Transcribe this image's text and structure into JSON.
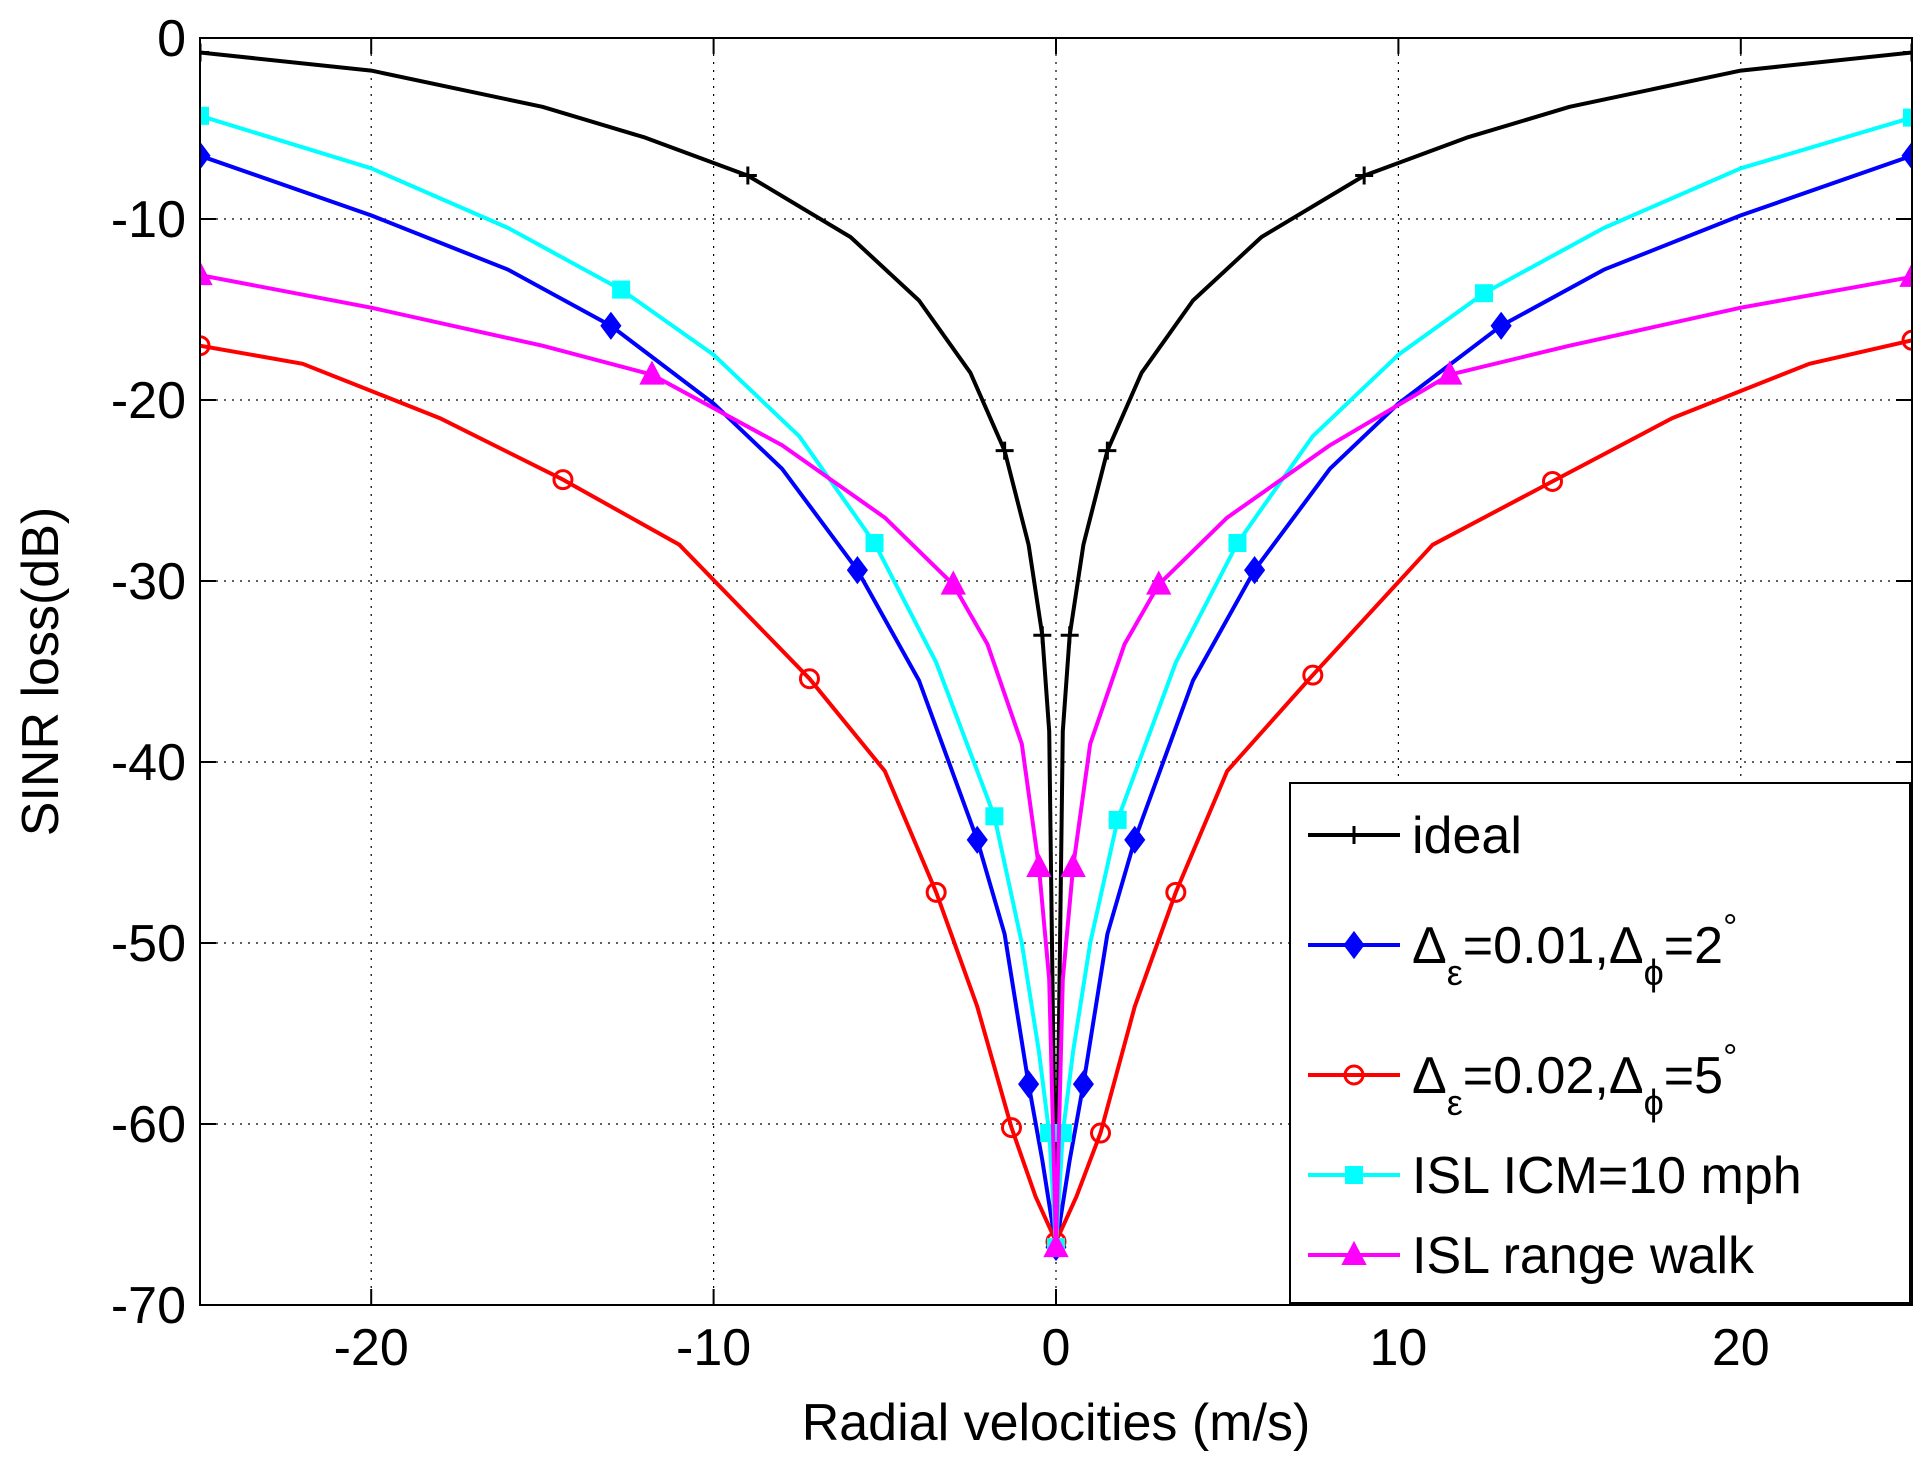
{
  "chart_data": {
    "type": "line",
    "title": "",
    "xlabel": "Radial velocities (m/s)",
    "ylabel": "SINR loss(dB)",
    "xlim": [
      -25,
      25
    ],
    "ylim": [
      -70,
      0
    ],
    "xticks": [
      -20,
      -10,
      0,
      10,
      20
    ],
    "yticks": [
      0,
      -10,
      -20,
      -30,
      -40,
      -50,
      -60,
      -70
    ],
    "xtick_labels": [
      "-20",
      "-10",
      "0",
      "10",
      "20"
    ],
    "ytick_labels": [
      "0",
      "-10",
      "-20",
      "-30",
      "-40",
      "-50",
      "-60",
      "-70"
    ],
    "grid": true,
    "legend_position": "bottom-right",
    "series": [
      {
        "name": "ideal",
        "legend": {
          "base": "ideal"
        },
        "color": "#000000",
        "marker": "plus",
        "points": [
          [
            -25,
            -0.8
          ],
          [
            -20,
            -1.8
          ],
          [
            -15,
            -3.8
          ],
          [
            -12,
            -5.5
          ],
          [
            -9,
            -7.6
          ],
          [
            -6,
            -11.0
          ],
          [
            -4,
            -14.5
          ],
          [
            -2.5,
            -18.5
          ],
          [
            -1.5,
            -22.8
          ],
          [
            -0.8,
            -28
          ],
          [
            -0.4,
            -33
          ],
          [
            -0.2,
            -38.3
          ],
          [
            0,
            -67
          ],
          [
            0.2,
            -38.3
          ],
          [
            0.4,
            -33
          ],
          [
            0.8,
            -28
          ],
          [
            1.5,
            -22.8
          ],
          [
            2.5,
            -18.5
          ],
          [
            4,
            -14.5
          ],
          [
            6,
            -11.0
          ],
          [
            9,
            -7.6
          ],
          [
            12,
            -5.5
          ],
          [
            15,
            -3.8
          ],
          [
            20,
            -1.8
          ],
          [
            25,
            -0.8
          ]
        ],
        "marker_x": [
          -25,
          -9,
          -1.5,
          -0.4,
          0.4,
          1.5,
          9,
          25
        ]
      },
      {
        "name": "Δε=0.01,Δϕ=2°",
        "legend": {
          "base": "Δ",
          "sub1": "ε",
          "mid": "=0.01,Δ",
          "sub2": "ϕ",
          "tail": "=2",
          "sup": "°"
        },
        "color": "#0000ff",
        "marker": "diamond",
        "points": [
          [
            -25,
            -6.5
          ],
          [
            -20,
            -9.8
          ],
          [
            -16,
            -12.8
          ],
          [
            -13,
            -15.9
          ],
          [
            -10,
            -20.2
          ],
          [
            -8,
            -23.8
          ],
          [
            -5.8,
            -29.4
          ],
          [
            -4,
            -35.5
          ],
          [
            -2.3,
            -44.3
          ],
          [
            -1.5,
            -49.5
          ],
          [
            -0.8,
            -57.8
          ],
          [
            -0.4,
            -62
          ],
          [
            0,
            -66.8
          ],
          [
            0.4,
            -62
          ],
          [
            0.8,
            -57.8
          ],
          [
            1.5,
            -49.5
          ],
          [
            2.3,
            -44.3
          ],
          [
            4,
            -35.5
          ],
          [
            5.8,
            -29.4
          ],
          [
            8,
            -23.8
          ],
          [
            10,
            -20.2
          ],
          [
            13,
            -15.9
          ],
          [
            16,
            -12.8
          ],
          [
            20,
            -9.8
          ],
          [
            25,
            -6.5
          ]
        ],
        "marker_x": [
          -25,
          -13,
          -5.8,
          -2.3,
          -0.8,
          0,
          0.8,
          2.3,
          5.8,
          13,
          25
        ]
      },
      {
        "name": "Δε=0.02,Δϕ=5°",
        "legend": {
          "base": "Δ",
          "sub1": "ε",
          "mid": "=0.02,Δ",
          "sub2": "ϕ",
          "tail": "=5",
          "sup": "°"
        },
        "color": "#ff0000",
        "marker": "circle",
        "points": [
          [
            -25,
            -17.0
          ],
          [
            -22,
            -18.0
          ],
          [
            -18,
            -21.0
          ],
          [
            -14.4,
            -24.4
          ],
          [
            -11,
            -28.0
          ],
          [
            -7.2,
            -35.4
          ],
          [
            -5,
            -40.5
          ],
          [
            -3.5,
            -47.2
          ],
          [
            -2.3,
            -53.5
          ],
          [
            -1.3,
            -60.2
          ],
          [
            -0.6,
            -64
          ],
          [
            0,
            -66.5
          ],
          [
            0.6,
            -64
          ],
          [
            1.3,
            -60.5
          ],
          [
            2.3,
            -53.5
          ],
          [
            3.5,
            -47.2
          ],
          [
            5,
            -40.5
          ],
          [
            7.5,
            -35.2
          ],
          [
            11,
            -28.0
          ],
          [
            14.5,
            -24.5
          ],
          [
            18,
            -21.0
          ],
          [
            22,
            -18.0
          ],
          [
            25,
            -16.7
          ]
        ],
        "marker_x": [
          -25,
          -14.4,
          -7.2,
          -3.5,
          -1.3,
          0,
          1.3,
          3.5,
          7.5,
          14.5,
          25
        ]
      },
      {
        "name": "ISL ICM=10 mph",
        "legend": {
          "base": "ISL ICM=10 mph"
        },
        "color": "#00ffff",
        "marker": "square",
        "points": [
          [
            -25,
            -4.3
          ],
          [
            -20,
            -7.2
          ],
          [
            -16,
            -10.5
          ],
          [
            -12.7,
            -13.9
          ],
          [
            -10,
            -17.5
          ],
          [
            -7.5,
            -22.0
          ],
          [
            -5.3,
            -27.9
          ],
          [
            -3.5,
            -34.5
          ],
          [
            -1.8,
            -43.0
          ],
          [
            -1.0,
            -50.0
          ],
          [
            -0.5,
            -56.0
          ],
          [
            -0.2,
            -60.5
          ],
          [
            0,
            -66.8
          ],
          [
            0.2,
            -60.5
          ],
          [
            0.5,
            -56.0
          ],
          [
            1.0,
            -50.0
          ],
          [
            1.8,
            -43.2
          ],
          [
            3.5,
            -34.5
          ],
          [
            5.3,
            -27.9
          ],
          [
            7.5,
            -22.0
          ],
          [
            10,
            -17.5
          ],
          [
            12.5,
            -14.1
          ],
          [
            16,
            -10.5
          ],
          [
            20,
            -7.2
          ],
          [
            25,
            -4.4
          ]
        ],
        "marker_x": [
          -25,
          -12.7,
          -5.3,
          -1.8,
          -0.2,
          0,
          0.2,
          1.8,
          5.3,
          12.5,
          25
        ]
      },
      {
        "name": "ISL range walk",
        "legend": {
          "base": "ISL range walk"
        },
        "color": "#ff00ff",
        "marker": "triangle",
        "points": [
          [
            -25,
            -13.1
          ],
          [
            -20,
            -14.9
          ],
          [
            -15,
            -17.0
          ],
          [
            -11.8,
            -18.6
          ],
          [
            -8,
            -22.5
          ],
          [
            -5,
            -26.5
          ],
          [
            -3,
            -30.2
          ],
          [
            -2,
            -33.5
          ],
          [
            -1.0,
            -39.0
          ],
          [
            -0.5,
            -45.8
          ],
          [
            -0.2,
            -52
          ],
          [
            0,
            -66.8
          ],
          [
            0.2,
            -52
          ],
          [
            0.5,
            -45.8
          ],
          [
            1.0,
            -39.0
          ],
          [
            2,
            -33.5
          ],
          [
            3,
            -30.2
          ],
          [
            5,
            -26.5
          ],
          [
            8,
            -22.5
          ],
          [
            11.5,
            -18.6
          ],
          [
            15,
            -17.0
          ],
          [
            20,
            -14.9
          ],
          [
            25,
            -13.2
          ]
        ],
        "marker_x": [
          -25,
          -11.8,
          -3,
          -0.5,
          0,
          0.5,
          3,
          11.5,
          25
        ]
      }
    ]
  }
}
